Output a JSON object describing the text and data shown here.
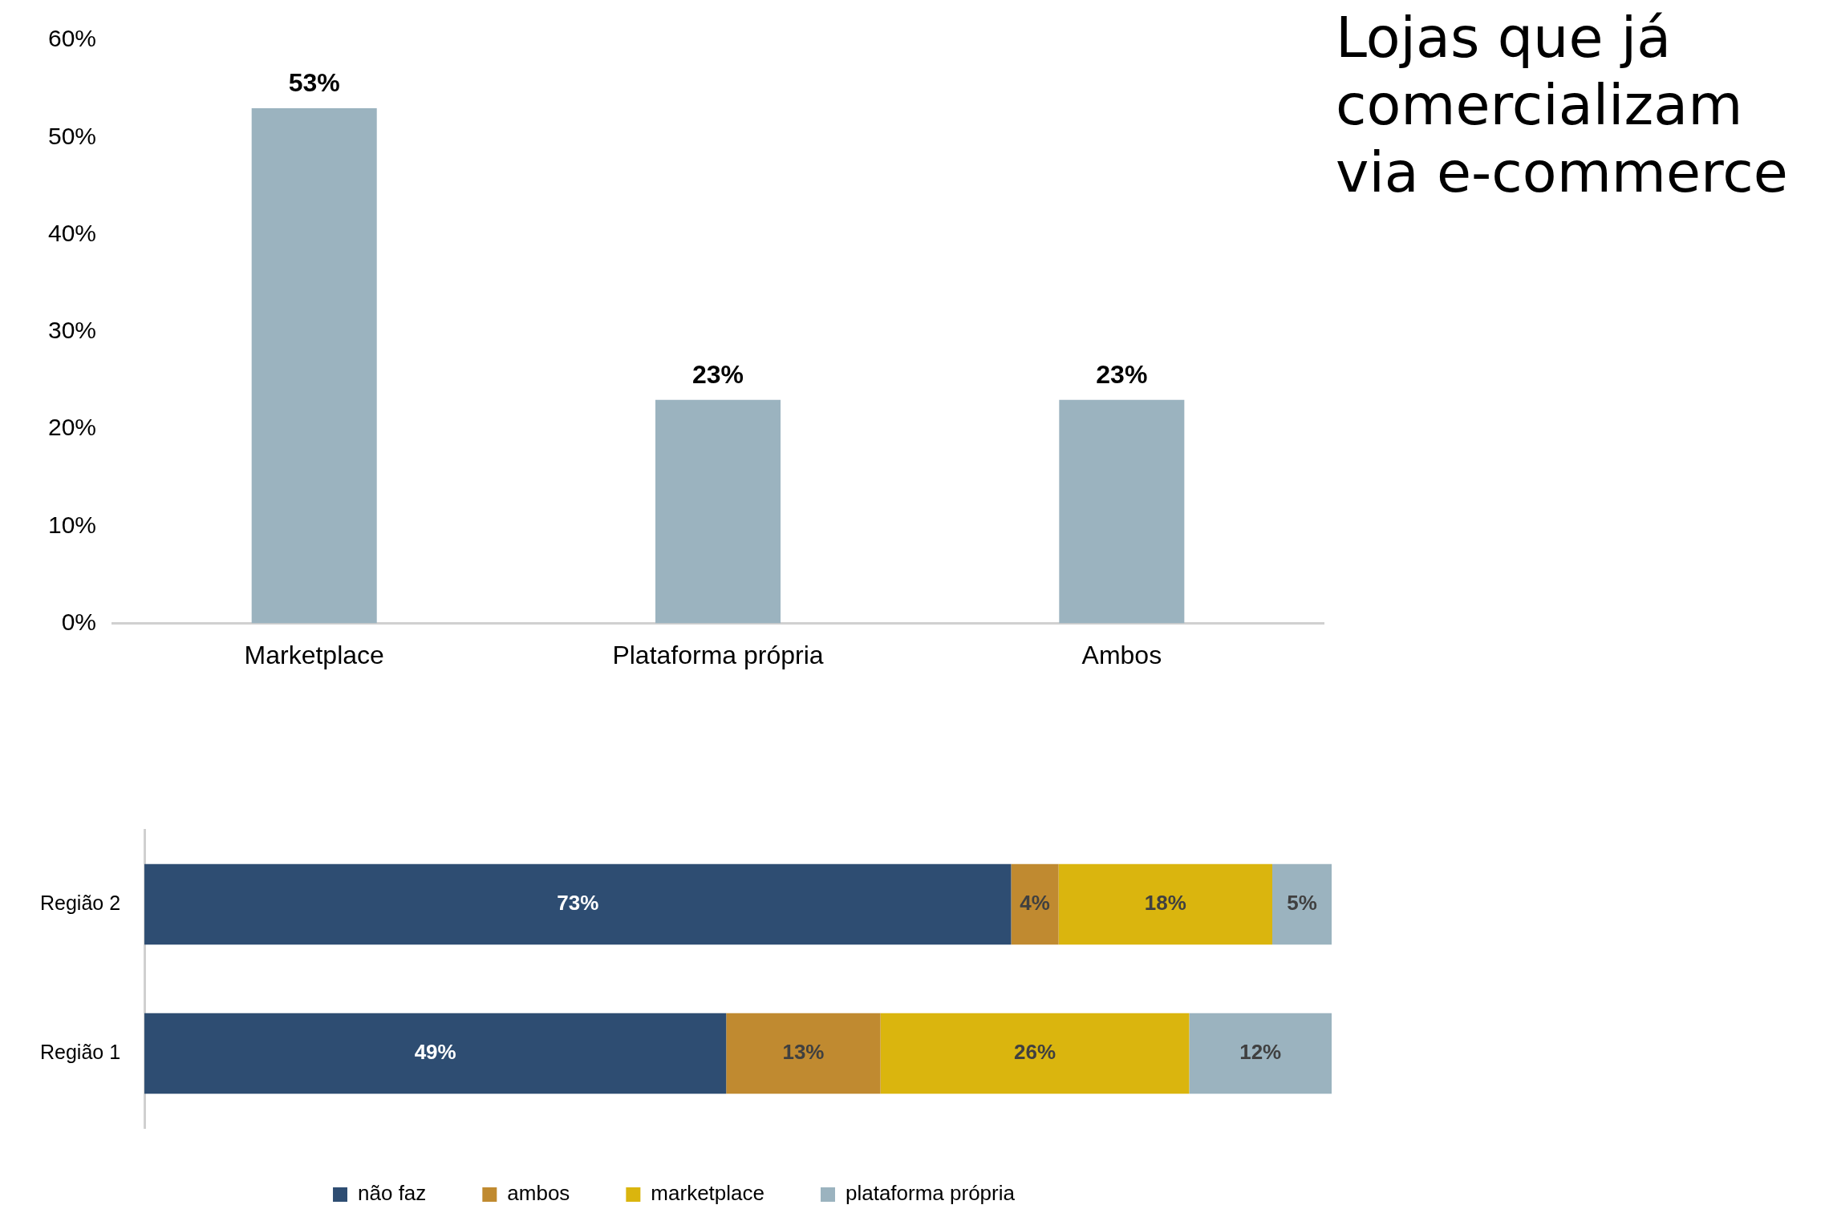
{
  "chart_data": [
    {
      "type": "bar",
      "title": "Lojas que já comercializam via e-commerce",
      "categories": [
        "Marketplace",
        "Plataforma própria",
        "Ambos"
      ],
      "values": [
        53,
        23,
        23
      ],
      "value_labels": [
        "53%",
        "23%",
        "23%"
      ],
      "color": "#9bb3bf",
      "ylim": [
        0,
        60
      ],
      "yticks": [
        {
          "value": 0,
          "label": "0%"
        },
        {
          "value": 10,
          "label": "10%"
        },
        {
          "value": 20,
          "label": "20%"
        },
        {
          "value": 30,
          "label": "30%"
        },
        {
          "value": 40,
          "label": "40%"
        },
        {
          "value": 50,
          "label": "50%"
        },
        {
          "value": 60,
          "label": "60%"
        }
      ],
      "grid": false,
      "legend": false
    },
    {
      "type": "bar",
      "orientation": "horizontal",
      "stacked": true,
      "categories": [
        "Região 2",
        "Região 1"
      ],
      "xlim": [
        0,
        100
      ],
      "tick_labels": "y",
      "grid": false,
      "legend": "bottom",
      "series": [
        {
          "name": "não faz",
          "color": "#2e4d72",
          "values": [
            73,
            49
          ],
          "value_labels": [
            "73%",
            "49%"
          ]
        },
        {
          "name": "ambos",
          "color": "#c08a30",
          "values": [
            4,
            13
          ],
          "value_labels": [
            "4%",
            "13%"
          ]
        },
        {
          "name": "marketplace",
          "color": "#dab50e",
          "values": [
            18,
            26
          ],
          "value_labels": [
            "18%",
            "26%"
          ]
        },
        {
          "name": "plataforma própria",
          "color": "#9bb3bf",
          "values": [
            5,
            12
          ],
          "value_labels": [
            "5%",
            "12%"
          ]
        }
      ]
    }
  ]
}
